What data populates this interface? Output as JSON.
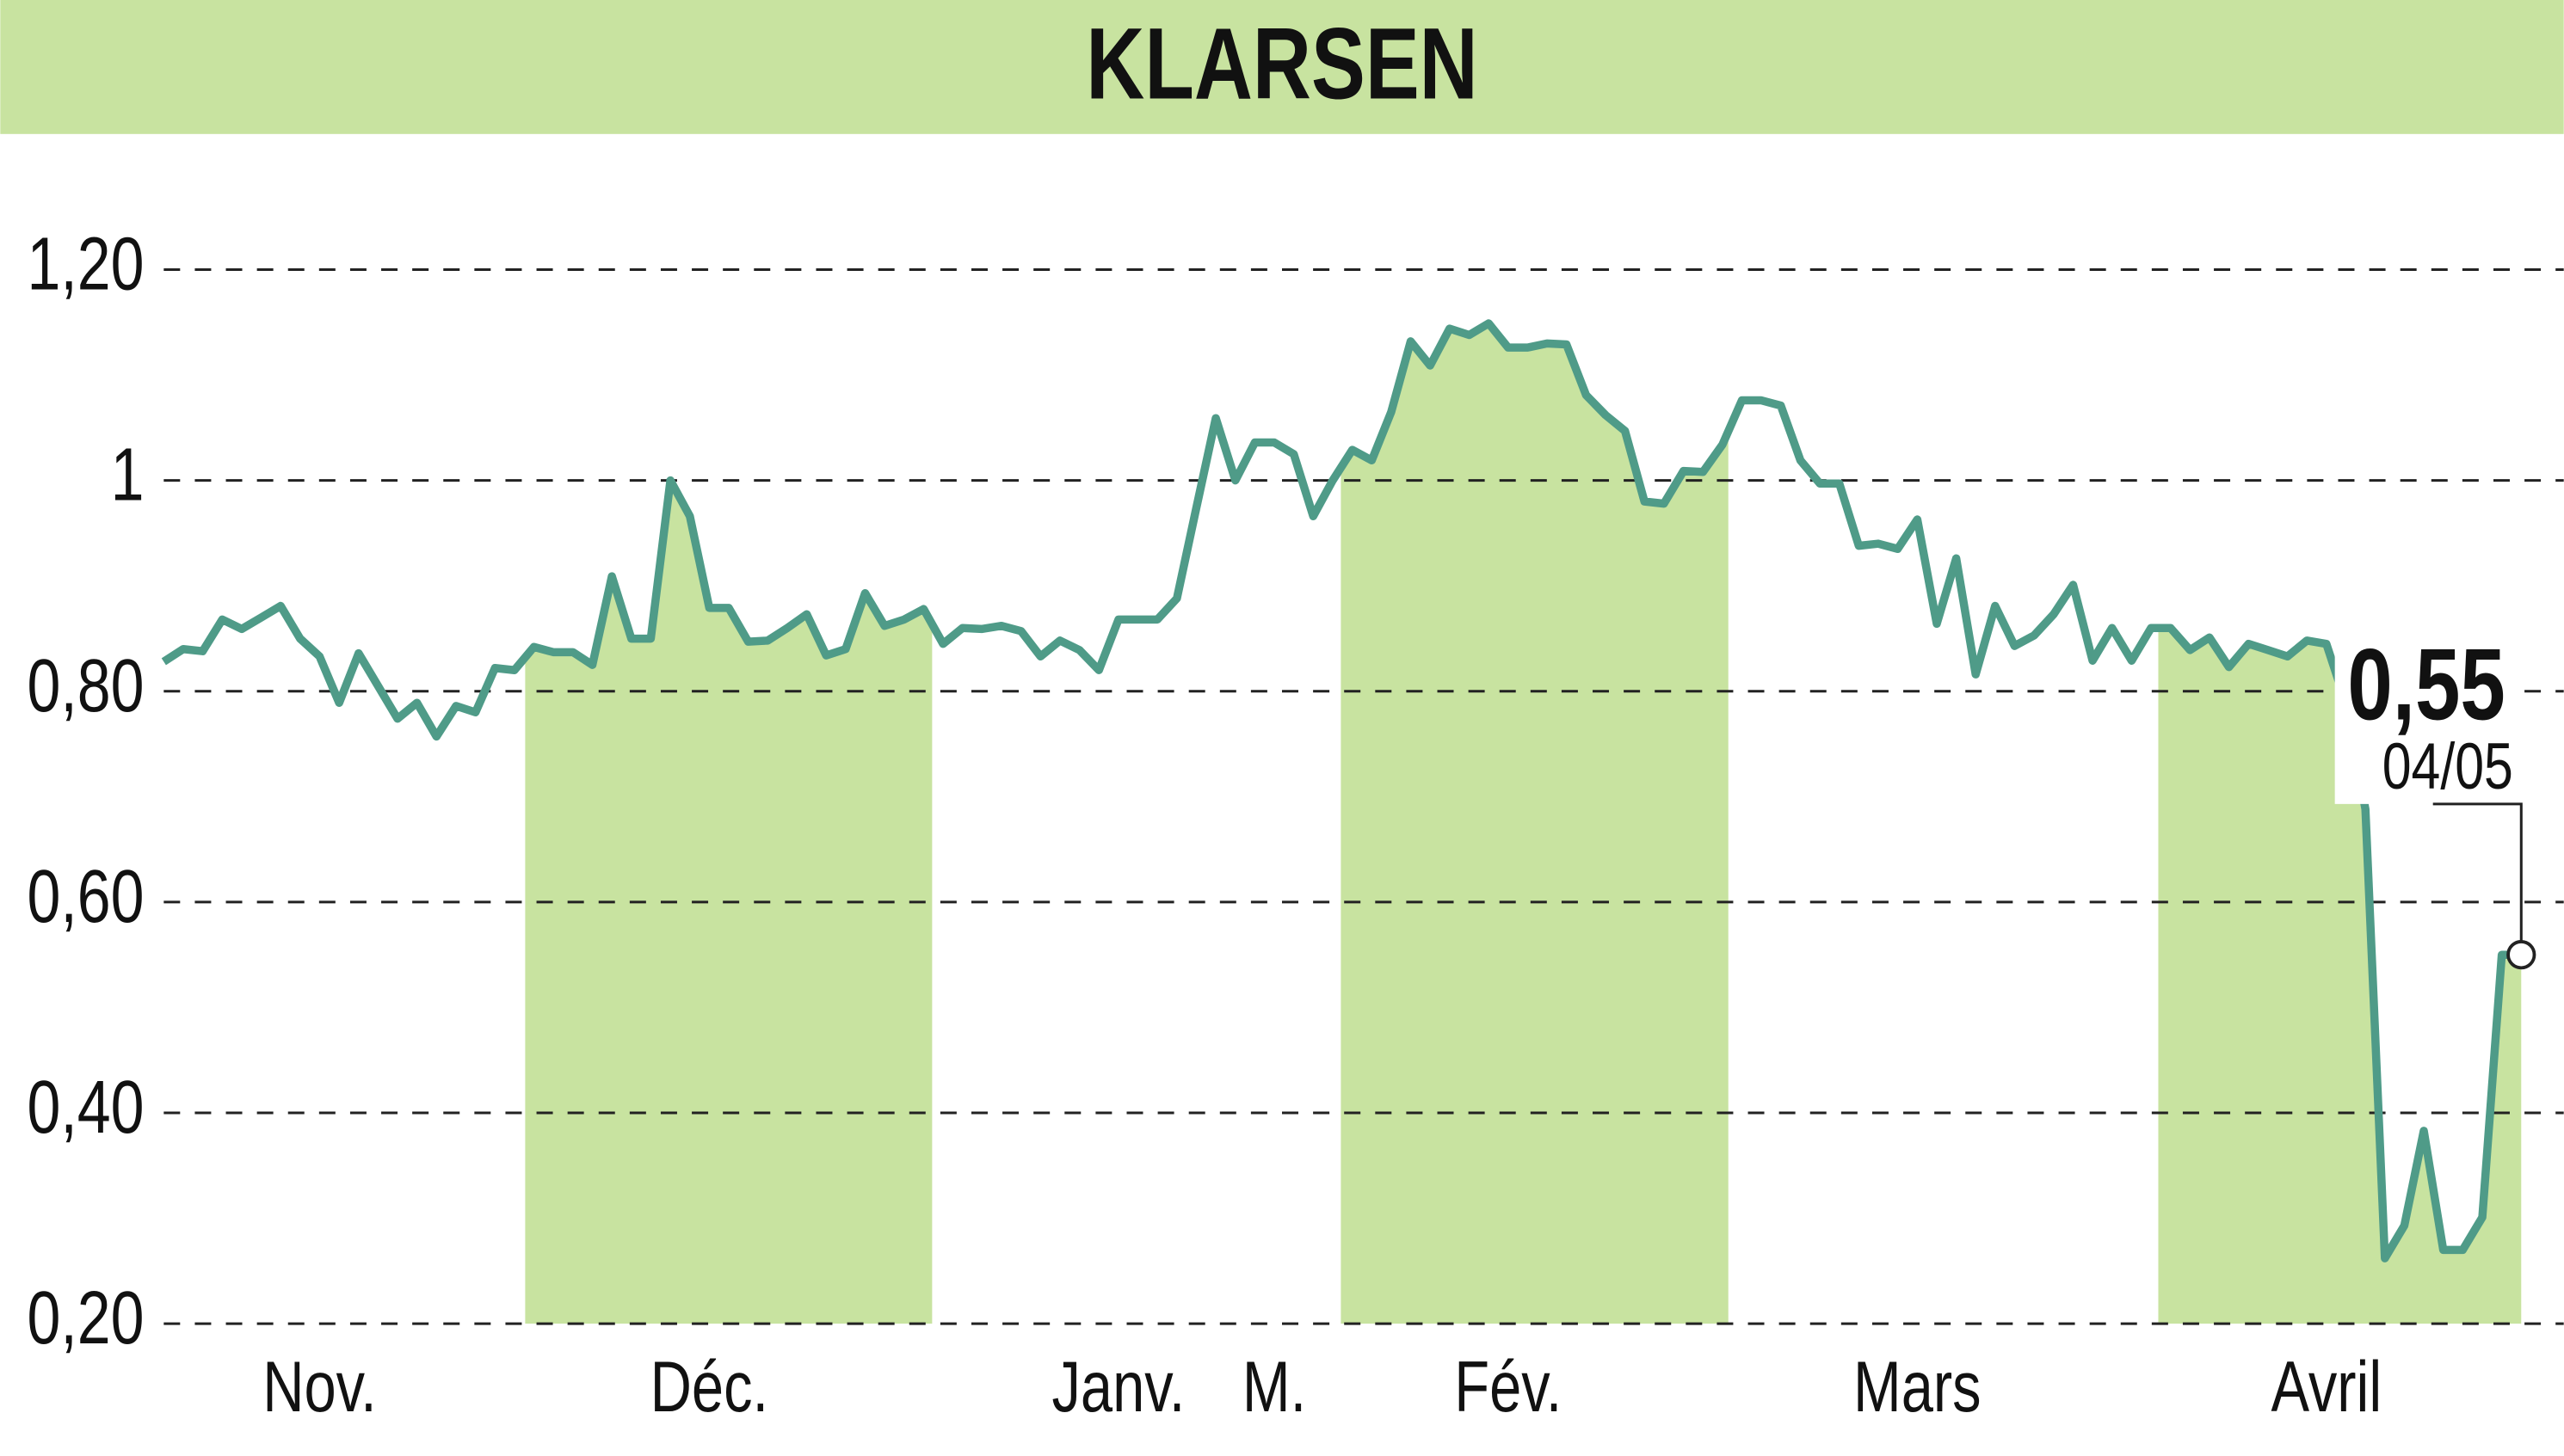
{
  "chart_data": {
    "type": "line",
    "title": "KLARSEN",
    "categories": [
      null,
      null,
      null,
      null,
      null,
      null,
      null,
      null,
      "Nov.",
      null,
      null,
      null,
      null,
      null,
      null,
      null,
      null,
      null,
      null,
      null,
      null,
      null,
      null,
      null,
      null,
      null,
      null,
      null,
      "Déc.",
      null,
      null,
      null,
      null,
      null,
      null,
      null,
      null,
      null,
      null,
      null,
      null,
      null,
      null,
      null,
      null,
      null,
      null,
      null,
      null,
      "Janv.",
      null,
      null,
      null,
      null,
      null,
      null,
      null,
      "M.",
      null,
      null,
      null,
      null,
      null,
      null,
      null,
      null,
      null,
      null,
      null,
      "Fév.",
      null,
      null,
      null,
      null,
      null,
      null,
      null,
      null,
      null,
      null,
      null,
      null,
      null,
      null,
      null,
      null,
      null,
      null,
      null,
      null,
      "Mars",
      null,
      null,
      null,
      null,
      null,
      null,
      null,
      null,
      null,
      null,
      null,
      null,
      null,
      null,
      null,
      null,
      null,
      null,
      null,
      null,
      "Avril",
      null,
      null,
      null,
      null,
      null,
      null,
      null,
      null,
      null,
      null
    ],
    "values": [
      0.828,
      0.84,
      0.838,
      0.868,
      0.859,
      0.87,
      0.881,
      0.85,
      0.833,
      0.789,
      0.836,
      0.805,
      0.774,
      0.789,
      0.757,
      0.786,
      0.78,
      0.822,
      0.82,
      0.842,
      0.837,
      0.837,
      0.825,
      0.909,
      0.85,
      0.85,
      1.0,
      0.966,
      0.879,
      0.879,
      0.847,
      0.848,
      0.86,
      0.873,
      0.834,
      0.84,
      0.893,
      0.862,
      0.868,
      0.878,
      0.845,
      0.86,
      0.859,
      0.862,
      0.857,
      0.833,
      0.848,
      0.839,
      0.82,
      0.868,
      0.868,
      0.868,
      0.888,
      0.974,
      1.059,
      1.0,
      1.036,
      1.036,
      1.025,
      0.966,
      1.0,
      1.029,
      1.019,
      1.065,
      1.132,
      1.109,
      1.144,
      1.138,
      1.149,
      1.126,
      1.126,
      1.13,
      1.129,
      1.081,
      1.062,
      1.047,
      0.98,
      0.978,
      1.009,
      1.008,
      1.034,
      1.076,
      1.076,
      1.071,
      1.019,
      0.997,
      0.997,
      0.938,
      0.94,
      0.935,
      0.963,
      0.864,
      0.926,
      0.816,
      0.881,
      0.843,
      0.853,
      0.873,
      0.901,
      0.829,
      0.86,
      0.829,
      0.86,
      0.86,
      0.839,
      0.851,
      0.823,
      0.845,
      0.839,
      0.833,
      0.848,
      0.845,
      0.789,
      0.688,
      0.262,
      0.293,
      0.383,
      0.27,
      0.27,
      0.301,
      0.55,
      0.55
    ],
    "color": "#4f9b88",
    "fill_color": "#c8e3a0",
    "ylim": [
      0.2,
      1.2
    ],
    "yticks": [
      {
        "value": 0.2,
        "label": "0,20"
      },
      {
        "value": 0.4,
        "label": "0,40"
      },
      {
        "value": 0.6,
        "label": "0,60"
      },
      {
        "value": 0.8,
        "label": "0,80"
      },
      1,
      {
        "value": 1.2,
        "label": "1,20"
      }
    ],
    "grid": true,
    "last_value_label": "0,55",
    "last_date": "04/05"
  }
}
